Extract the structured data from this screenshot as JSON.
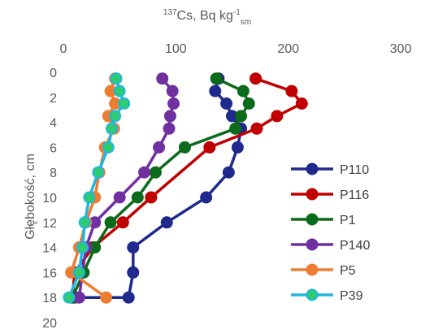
{
  "chart_data": {
    "type": "line",
    "title": "",
    "xlabel": "137Cs, Bq kg-1sm",
    "xlabel_parts": {
      "superscript_mass": "137",
      "base": "Cs, Bq kg",
      "superscript_exp": "-1",
      "subscript": "sm"
    },
    "ylabel": "Głębokość, cm",
    "xlim": [
      0,
      300
    ],
    "ylim": [
      0,
      20
    ],
    "y_inverted": true,
    "x_axis_position": "top",
    "x_ticks": [
      "0",
      "100",
      "200",
      "300"
    ],
    "y_ticks": [
      "0",
      "2",
      "4",
      "6",
      "8",
      "10",
      "12",
      "14",
      "16",
      "18",
      "20"
    ],
    "grid": false,
    "legend_position": "right",
    "series": [
      {
        "name": "P110",
        "color": "#1f2a8c",
        "marker_fill": "#1f2a8c",
        "x": [
          138,
          135,
          145,
          150,
          158,
          155,
          147,
          127,
          92,
          62,
          62,
          58,
          10
        ],
        "y": [
          0.5,
          1.5,
          2.5,
          3.5,
          4.5,
          6,
          8,
          10,
          12,
          14,
          16,
          18,
          18
        ]
      },
      {
        "name": "P116",
        "color": "#c00000",
        "marker_fill": "#c00000",
        "x": [
          171,
          203,
          212,
          190,
          172,
          130,
          78,
          53,
          26,
          10,
          8
        ],
        "y": [
          0.5,
          1.5,
          2.5,
          3.5,
          4.5,
          6,
          10,
          12,
          14,
          16,
          18
        ]
      },
      {
        "name": "P1",
        "color": "#0b6b1a",
        "marker_fill": "#0b6b1a",
        "x": [
          136,
          160,
          165,
          158,
          153,
          108,
          82,
          66,
          42,
          28,
          18,
          8
        ],
        "y": [
          0.5,
          1.5,
          2.5,
          3.5,
          4.5,
          6,
          8,
          10,
          12,
          14,
          16,
          18
        ]
      },
      {
        "name": "P140",
        "color": "#7030a0",
        "marker_fill": "#7030a0",
        "x": [
          88,
          97,
          98,
          95,
          94,
          85,
          72,
          50,
          28,
          20,
          14
        ],
        "y": [
          0.5,
          1.5,
          2.5,
          3.5,
          4.5,
          6,
          8,
          10,
          12,
          14,
          18
        ]
      },
      {
        "name": "P5",
        "color": "#ed7d31",
        "marker_fill": "#ed7d31",
        "x": [
          46,
          42,
          46,
          40,
          45,
          37,
          32,
          28,
          20,
          14,
          7,
          38
        ],
        "y": [
          0.5,
          1.5,
          2.5,
          3.5,
          4.5,
          6,
          8,
          10,
          12,
          14,
          16,
          18
        ]
      },
      {
        "name": "P39",
        "color": "#1fb6e0",
        "marker_fill": "#2ecc71",
        "x": [
          47,
          50,
          54,
          46,
          43,
          40,
          31,
          23,
          19,
          17,
          14,
          5
        ],
        "y": [
          0.5,
          1.5,
          2.5,
          3.5,
          4.5,
          6,
          8,
          10,
          12,
          14,
          16,
          18
        ]
      }
    ]
  }
}
